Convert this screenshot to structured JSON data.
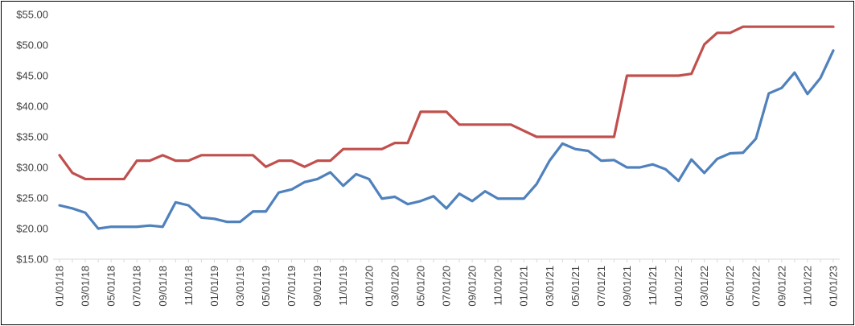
{
  "chart_data": {
    "type": "line",
    "title": "",
    "xlabel": "",
    "ylabel": "",
    "ylim": [
      15,
      55
    ],
    "y_ticks": [
      "$15.00",
      "$20.00",
      "$25.00",
      "$30.00",
      "$35.00",
      "$40.00",
      "$45.00",
      "$50.00",
      "$55.00"
    ],
    "x_tick_labels": [
      "01/01/18",
      "03/01/18",
      "05/01/18",
      "07/01/18",
      "09/01/18",
      "11/01/18",
      "01/01/19",
      "03/01/19",
      "05/01/19",
      "07/01/19",
      "09/01/19",
      "11/01/19",
      "01/01/20",
      "03/01/20",
      "05/01/20",
      "07/01/20",
      "09/01/20",
      "11/01/20",
      "01/01/21",
      "03/01/21",
      "05/01/21",
      "07/01/21",
      "09/01/21",
      "11/01/21",
      "01/01/22",
      "03/01/22",
      "05/01/22",
      "07/01/22",
      "09/01/22",
      "11/01/22",
      "01/01/23"
    ],
    "grid": false,
    "legend": "none",
    "x": [
      "01/01/18",
      "02/01/18",
      "03/01/18",
      "04/01/18",
      "05/01/18",
      "06/01/18",
      "07/01/18",
      "08/01/18",
      "09/01/18",
      "10/01/18",
      "11/01/18",
      "12/01/18",
      "01/01/19",
      "02/01/19",
      "03/01/19",
      "04/01/19",
      "05/01/19",
      "06/01/19",
      "07/01/19",
      "08/01/19",
      "09/01/19",
      "10/01/19",
      "11/01/19",
      "12/01/19",
      "01/01/20",
      "02/01/20",
      "03/01/20",
      "04/01/20",
      "05/01/20",
      "06/01/20",
      "07/01/20",
      "08/01/20",
      "09/01/20",
      "10/01/20",
      "11/01/20",
      "12/01/20",
      "01/01/21",
      "02/01/21",
      "03/01/21",
      "04/01/21",
      "05/01/21",
      "06/01/21",
      "07/01/21",
      "08/01/21",
      "09/01/21",
      "10/01/21",
      "11/01/21",
      "12/01/21",
      "01/01/22",
      "02/01/22",
      "03/01/22",
      "04/01/22",
      "05/01/22",
      "06/01/22",
      "07/01/22",
      "08/01/22",
      "09/01/22",
      "10/01/22",
      "11/01/22",
      "12/01/22",
      "01/01/23"
    ],
    "series": [
      {
        "color": "#4f81bd",
        "values": [
          23.8,
          23.3,
          22.6,
          20.0,
          20.3,
          20.3,
          20.3,
          20.5,
          20.3,
          24.3,
          23.8,
          21.8,
          21.6,
          21.1,
          21.1,
          22.8,
          22.8,
          25.9,
          26.4,
          27.6,
          28.1,
          29.2,
          27.0,
          28.9,
          28.1,
          24.9,
          25.2,
          24.0,
          24.5,
          25.3,
          23.3,
          25.7,
          24.5,
          26.1,
          24.9,
          24.9,
          24.9,
          27.3,
          31.1,
          33.9,
          33.0,
          32.7,
          31.1,
          31.2,
          30.0,
          30.0,
          30.5,
          29.7,
          27.8,
          31.3,
          29.1,
          31.4,
          32.3,
          32.4,
          34.7,
          42.1,
          43.0,
          45.5,
          42.0,
          44.6,
          49.1
        ]
      },
      {
        "color": "#c0504d",
        "values": [
          32.0,
          29.1,
          28.1,
          28.1,
          28.1,
          28.1,
          31.1,
          31.1,
          32.0,
          31.1,
          31.1,
          32.0,
          32.0,
          32.0,
          32.0,
          32.0,
          30.1,
          31.1,
          31.1,
          30.1,
          31.1,
          31.1,
          33.0,
          33.0,
          33.0,
          33.0,
          34.0,
          34.0,
          39.1,
          39.1,
          39.1,
          37.0,
          37.0,
          37.0,
          37.0,
          37.0,
          36.0,
          35.0,
          35.0,
          35.0,
          35.0,
          35.0,
          35.0,
          35.0,
          45.0,
          45.0,
          45.0,
          45.0,
          45.0,
          45.3,
          50.1,
          52.0,
          52.0,
          53.0,
          53.0,
          53.0,
          53.0,
          53.0,
          53.0,
          53.0,
          53.0
        ]
      }
    ]
  }
}
